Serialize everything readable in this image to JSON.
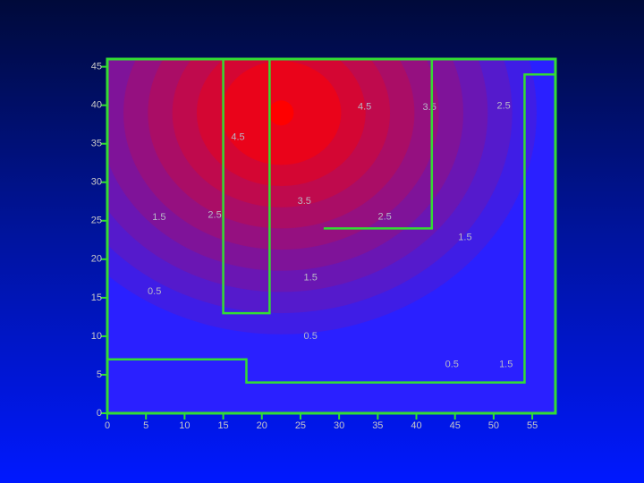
{
  "chart_data": {
    "type": "contour",
    "xlim": [
      0,
      58
    ],
    "ylim": [
      0,
      46
    ],
    "xticks": [
      0,
      5,
      10,
      15,
      20,
      25,
      30,
      35,
      40,
      45,
      50,
      55
    ],
    "yticks": [
      0,
      5,
      10,
      15,
      20,
      25,
      30,
      35,
      40,
      45
    ],
    "peak": {
      "x": 22.5,
      "y": 39,
      "value": 5
    },
    "levels": [
      0.5,
      1,
      1.5,
      2,
      2.5,
      3,
      3.5,
      4,
      4.5
    ],
    "low_color": "#2a20ff",
    "high_color": "#ff0000",
    "boundary_color": "#33dd33",
    "boundaries": [
      {
        "x": [
          0,
          18,
          18,
          54,
          54,
          58
        ],
        "y": [
          7,
          7,
          4,
          4,
          44,
          44
        ]
      },
      {
        "x": [
          15,
          15,
          21,
          21
        ],
        "y": [
          46,
          13,
          13,
          46
        ]
      },
      {
        "x": [
          28,
          42,
          42
        ],
        "y": [
          24,
          24,
          46
        ]
      }
    ],
    "contour_labels": [
      {
        "value": 4.5,
        "x": 33.3,
        "y": 39.8
      },
      {
        "value": 3.5,
        "x": 41.7,
        "y": 39.7
      },
      {
        "value": 2.5,
        "x": 51.3,
        "y": 39.9
      },
      {
        "value": 4.5,
        "x": 16.9,
        "y": 35.8
      },
      {
        "value": 3.5,
        "x": 25.5,
        "y": 27.5
      },
      {
        "value": 2.5,
        "x": 13.9,
        "y": 25.7
      },
      {
        "value": 2.5,
        "x": 35.9,
        "y": 25.5
      },
      {
        "value": 1.5,
        "x": 6.7,
        "y": 25.4
      },
      {
        "value": 1.5,
        "x": 46.3,
        "y": 22.8
      },
      {
        "value": 1.5,
        "x": 26.3,
        "y": 17.6
      },
      {
        "value": 0.5,
        "x": 6.1,
        "y": 15.8
      },
      {
        "value": 0.5,
        "x": 26.3,
        "y": 10
      },
      {
        "value": 0.5,
        "x": 44.6,
        "y": 6.3
      },
      {
        "value": 1.5,
        "x": 51.6,
        "y": 6.3
      }
    ]
  }
}
